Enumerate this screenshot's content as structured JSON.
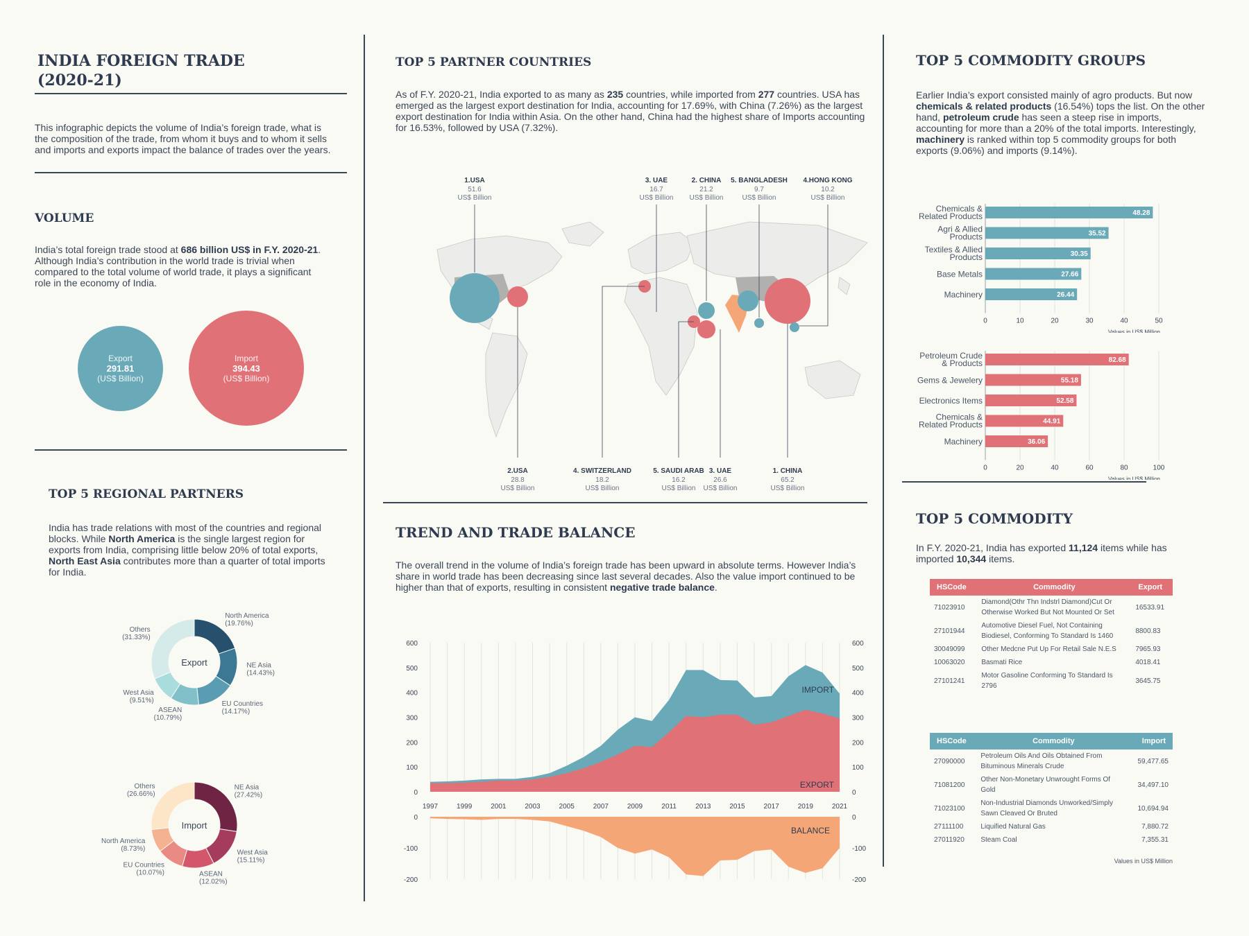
{
  "header": {
    "title_line1": "INDIA FOREIGN TRADE",
    "title_line2": "(2020-21)",
    "intro": "This infographic depicts the volume of India’s foreign trade, what is the composition of the trade, from whom it buys and to whom it sells and imports and exports impact the balance of trades over the years."
  },
  "volume": {
    "title": "VOLUME",
    "text_a": "India’s total foreign trade stood at ",
    "text_b": "686 billion US$ in F.Y. 2020-21",
    "text_c": ". Although India’s contribution in the world trade is trivial when compared to the total volume of world trade, it plays a significant role in the economy of India.",
    "export_label": "Export",
    "export_value": "291.81",
    "import_label": "Import",
    "import_value": "394.43",
    "unit": "(US$ Billion)"
  },
  "regional": {
    "title": "TOP 5 REGIONAL PARTNERS",
    "text_a": "India has trade relations with most of the countries and regional blocks. While ",
    "text_b": "North America",
    "text_c": " is the single largest region for exports from India, comprising little below 20% of total exports, ",
    "text_d": "North East Asia",
    "text_e": " contributes more than a quarter of total imports for India.",
    "export_center": "Export",
    "import_center": "Import"
  },
  "partners": {
    "title": "TOP 5 PARTNER COUNTRIES",
    "text_a": "As of F.Y. 2020-21, India exported to as many as ",
    "text_b": "235",
    "text_c": " countries, while imported from ",
    "text_d": "277",
    "text_e": " countries. USA has emerged as the largest export destination for India, accounting for 17.69%, with China (7.26%) as the largest export destination for India within Asia. On the other hand, China had the highest share of Imports accounting for 16.53%, followed by USA (7.32%).",
    "unit": "US$ Billion",
    "top_labels": [
      {
        "name": "1.USA",
        "value": "51.6"
      },
      {
        "name": "3. UAE",
        "value": "16.7"
      },
      {
        "name": "2. CHINA",
        "value": "21.2"
      },
      {
        "name": "5. BANGLADESH",
        "value": "9.7"
      },
      {
        "name": "4.HONG KONG",
        "value": "10.2"
      }
    ],
    "bottom_labels": [
      {
        "name": "2.USA",
        "value": "28.8"
      },
      {
        "name": "4. SWITZERLAND",
        "value": "18.2"
      },
      {
        "name": "5. SAUDI ARAB",
        "value": "16.2"
      },
      {
        "name": "3. UAE",
        "value": "26.6"
      },
      {
        "name": "1. CHINA",
        "value": "65.2"
      }
    ]
  },
  "trend": {
    "title": "TREND AND TRADE BALANCE",
    "text_a": "The overall trend in the volume of India’s foreign trade has been upward in absolute terms. However India’s share in world trade has been decreasing since last several decades. Also the value import continued to be higher than that of exports, resulting in consistent ",
    "text_b": "negative trade balance",
    "text_c": ".",
    "import_label": "IMPORT",
    "export_label": "EXPORT",
    "balance_label": "BALANCE"
  },
  "commodity_groups": {
    "title": "TOP 5 COMMODITY GROUPS",
    "text_a": "Earlier India’s export consisted mainly of agro products. But now ",
    "text_b": "chemicals & related products",
    "text_c": " (16.54%) tops the list. On the other hand, ",
    "text_d": "petroleum crude",
    "text_e": " has seen a steep rise in imports, accounting for more than a 20% of the total imports. Interestingly, ",
    "text_f": "machinery",
    "text_g": " is ranked within top 5 commodity groups for both exports (9.06%) and imports (9.14%).",
    "axis_unit": "Values in US$ Million"
  },
  "top_commodity": {
    "title": "TOP 5 COMMODITY",
    "text_a": "In F.Y. 2020-21, India has exported ",
    "text_b": "11,124",
    "text_c": " items while has imported ",
    "text_d": "10,344",
    "text_e": " items.",
    "export_headers": [
      "HSCode",
      "Commodity",
      "Export"
    ],
    "export_rows": [
      [
        "71023910",
        "Diamond(Othr Thn Indstrl Diamond)Cut Or Otherwise Worked But Not Mounted Or Set",
        "16533.91"
      ],
      [
        "27101944",
        "Automotive Diesel Fuel, Not Containing Biodiesel, Conforming To Standard Is 1460",
        "8800.83"
      ],
      [
        "30049099",
        "Other Medcne Put Up For Retail Sale N.E.S",
        "7965.93"
      ],
      [
        "10063020",
        "Basmati Rice",
        "4018.41"
      ],
      [
        "27101241",
        "Motor Gasoline Conforming To Standard Is 2796",
        "3645.75"
      ]
    ],
    "import_headers": [
      "HSCode",
      "Commodity",
      "Import"
    ],
    "import_rows": [
      [
        "27090000",
        "Petroleum Oils And Oils Obtained From Bituminous Minerals Crude",
        "59,477.65"
      ],
      [
        "71081200",
        "Other Non-Monetary Unwrought Forms Of Gold",
        "34,497.10"
      ],
      [
        "71023100",
        "Non-Industrial Diamonds Unworked/Simply Sawn Cleaved Or Bruted",
        "10,694.94"
      ],
      [
        "27111100",
        "Liquified Natural Gas",
        "7,880.72"
      ],
      [
        "27011920",
        "Steam Coal",
        "7,355.31"
      ]
    ],
    "footnote": "Values in US$ Million"
  },
  "colors": {
    "teal": "#6aaab8",
    "red": "#e07177",
    "orange": "#f5a677",
    "dark": "#2e3a4f"
  },
  "chart_data": [
    {
      "type": "pie",
      "title": "Export",
      "labels": [
        "North America",
        "NE Asia",
        "EU Countries",
        "ASEAN",
        "West Asia",
        "Others"
      ],
      "values": [
        19.76,
        14.43,
        14.17,
        10.79,
        9.51,
        31.33
      ],
      "display": [
        "(19.76%)",
        "(14.43%)",
        "(14.17%)",
        "(10.79%)",
        "(9.51%)",
        "(31.33%)"
      ],
      "colors": [
        "#26506e",
        "#3b7894",
        "#5a9db2",
        "#82c0c9",
        "#a9dcdc",
        "#d5ebea"
      ]
    },
    {
      "type": "pie",
      "title": "Import",
      "labels": [
        "NE Asia",
        "West Asia",
        "ASEAN",
        "EU Countries",
        "North America",
        "Others"
      ],
      "values": [
        27.42,
        15.11,
        12.02,
        10.07,
        8.73,
        26.66
      ],
      "display": [
        "(27.42%)",
        "(15.11%)",
        "(12.02%)",
        "(10.07%)",
        "(8.73%)",
        "(26.66%)"
      ],
      "colors": [
        "#6e2442",
        "#a53c5e",
        "#d4566a",
        "#ea8a84",
        "#f4b290",
        "#fde5c8"
      ]
    },
    {
      "type": "bar",
      "title": "",
      "categories": [
        [
          "Chemicals &",
          "Related Products"
        ],
        [
          "Agri & Allied",
          "Products"
        ],
        [
          "Textiles & Allied",
          "Products"
        ],
        [
          "Base Metals"
        ],
        [
          "Machinery"
        ]
      ],
      "values": [
        48.28,
        35.52,
        30.35,
        27.66,
        26.44
      ],
      "xticks": [
        0,
        10,
        20,
        30,
        40,
        50
      ],
      "xlim": [
        0,
        50
      ],
      "xlabel": "Values in US$ Million",
      "color": "#6aaab8"
    },
    {
      "type": "bar",
      "title": "",
      "categories": [
        [
          "Petroleum Crude",
          "& Products"
        ],
        [
          "Gems & Jewelery"
        ],
        [
          "Electronics Items"
        ],
        [
          "Chemicals &",
          "Related Products"
        ],
        [
          "Machinery"
        ]
      ],
      "values": [
        82.68,
        55.18,
        52.58,
        44.91,
        36.06
      ],
      "xticks": [
        0,
        20,
        40,
        60,
        80,
        100
      ],
      "xlim": [
        0,
        100
      ],
      "xlabel": "Values in US$ Million",
      "color": "#e07177"
    },
    {
      "type": "area",
      "x": [
        1997,
        1998,
        1999,
        2000,
        2001,
        2002,
        2003,
        2004,
        2005,
        2006,
        2007,
        2008,
        2009,
        2010,
        2011,
        2012,
        2013,
        2014,
        2015,
        2016,
        2017,
        2018,
        2019,
        2020,
        2021
      ],
      "xticks": [
        1997,
        1999,
        2001,
        2003,
        2005,
        2007,
        2009,
        2011,
        2013,
        2015,
        2017,
        2019,
        2021
      ],
      "yticks": [
        0,
        100,
        200,
        300,
        400,
        500,
        600
      ],
      "ylim": [
        0,
        600
      ],
      "series": [
        {
          "name": "IMPORT",
          "values": [
            40,
            42,
            45,
            50,
            52,
            52,
            60,
            75,
            105,
            140,
            185,
            250,
            300,
            285,
            370,
            490,
            490,
            450,
            448,
            380,
            385,
            465,
            510,
            480,
            395
          ]
        },
        {
          "name": "EXPORT",
          "values": [
            35,
            35,
            37,
            40,
            45,
            45,
            50,
            60,
            75,
            95,
            120,
            150,
            185,
            180,
            240,
            305,
            300,
            310,
            310,
            270,
            280,
            305,
            330,
            315,
            295
          ]
        }
      ]
    },
    {
      "type": "area",
      "x": [
        1997,
        1998,
        1999,
        2000,
        2001,
        2002,
        2003,
        2004,
        2005,
        2006,
        2007,
        2008,
        2009,
        2010,
        2011,
        2012,
        2013,
        2014,
        2015,
        2016,
        2017,
        2018,
        2019,
        2020,
        2021
      ],
      "yticks": [
        0,
        -100,
        -200
      ],
      "ylim": [
        -200,
        0
      ],
      "series": [
        {
          "name": "BALANCE",
          "values": [
            -5,
            -7,
            -8,
            -10,
            -7,
            -7,
            -10,
            -15,
            -30,
            -45,
            -65,
            -100,
            -118,
            -105,
            -130,
            -185,
            -190,
            -140,
            -138,
            -110,
            -105,
            -160,
            -180,
            -165,
            -100
          ]
        }
      ]
    }
  ]
}
